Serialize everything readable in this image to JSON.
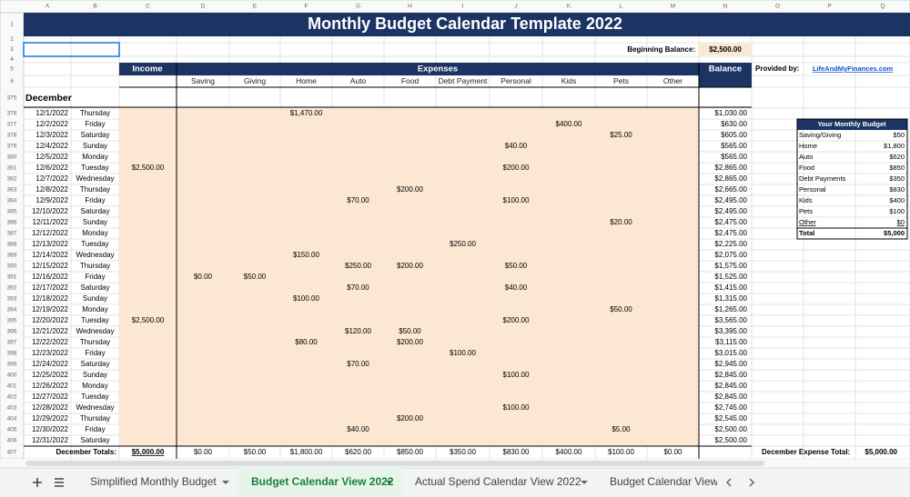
{
  "column_letters": [
    "A",
    "B",
    "C",
    "D",
    "E",
    "F",
    "G",
    "H",
    "I",
    "J",
    "K",
    "L",
    "M",
    "N",
    "O",
    "P",
    "Q"
  ],
  "row_numbers": [
    1,
    2,
    3,
    4,
    5,
    6,
    375,
    376,
    377,
    378,
    379,
    380,
    381,
    382,
    383,
    384,
    385,
    386,
    387,
    388,
    389,
    390,
    391,
    392,
    393,
    394,
    395,
    396,
    397,
    398,
    399,
    400,
    401,
    402,
    403,
    404,
    405,
    406,
    407
  ],
  "title": "Monthly Budget Calendar Template 2022",
  "beginning_balance": {
    "label": "Beginning Balance:",
    "value": "$2,500.00"
  },
  "provided_by": {
    "label": "Provided by:",
    "link": "LifeAndMyFinances.com"
  },
  "headers": {
    "income": "Income",
    "expenses": "Expenses",
    "balance": "Balance"
  },
  "expense_categories": [
    "Saving",
    "Giving",
    "Home",
    "Auto",
    "Food",
    "Debt Payment",
    "Personal",
    "Kids",
    "Pets",
    "Other"
  ],
  "month": "December",
  "days": [
    [
      "12/1/2022",
      "Thursday",
      null,
      null,
      null,
      "$1,470.00",
      null,
      null,
      null,
      null,
      null,
      null,
      null,
      "$1,030.00"
    ],
    [
      "12/2/2022",
      "Friday",
      null,
      null,
      null,
      null,
      null,
      null,
      null,
      null,
      "$400.00",
      null,
      null,
      "$630.00"
    ],
    [
      "12/3/2022",
      "Saturday",
      null,
      null,
      null,
      null,
      null,
      null,
      null,
      null,
      null,
      "$25.00",
      null,
      "$605.00"
    ],
    [
      "12/4/2022",
      "Sunday",
      null,
      null,
      null,
      null,
      null,
      null,
      null,
      "$40.00",
      null,
      null,
      null,
      "$565.00"
    ],
    [
      "12/5/2022",
      "Monday",
      null,
      null,
      null,
      null,
      null,
      null,
      null,
      null,
      null,
      null,
      null,
      "$565.00"
    ],
    [
      "12/6/2022",
      "Tuesday",
      "$2,500.00",
      null,
      null,
      null,
      null,
      null,
      null,
      "$200.00",
      null,
      null,
      null,
      "$2,865.00"
    ],
    [
      "12/7/2022",
      "Wednesday",
      null,
      null,
      null,
      null,
      null,
      null,
      null,
      null,
      null,
      null,
      null,
      "$2,865.00"
    ],
    [
      "12/8/2022",
      "Thursday",
      null,
      null,
      null,
      null,
      null,
      "$200.00",
      null,
      null,
      null,
      null,
      null,
      "$2,665.00"
    ],
    [
      "12/9/2022",
      "Friday",
      null,
      null,
      null,
      null,
      "$70.00",
      null,
      null,
      "$100.00",
      null,
      null,
      null,
      "$2,495.00"
    ],
    [
      "12/10/2022",
      "Saturday",
      null,
      null,
      null,
      null,
      null,
      null,
      null,
      null,
      null,
      null,
      null,
      "$2,495.00"
    ],
    [
      "12/11/2022",
      "Sunday",
      null,
      null,
      null,
      null,
      null,
      null,
      null,
      null,
      null,
      "$20.00",
      null,
      "$2,475.00"
    ],
    [
      "12/12/2022",
      "Monday",
      null,
      null,
      null,
      null,
      null,
      null,
      null,
      null,
      null,
      null,
      null,
      "$2,475.00"
    ],
    [
      "12/13/2022",
      "Tuesday",
      null,
      null,
      null,
      null,
      null,
      null,
      "$250.00",
      null,
      null,
      null,
      null,
      "$2,225.00"
    ],
    [
      "12/14/2022",
      "Wednesday",
      null,
      null,
      null,
      "$150.00",
      null,
      null,
      null,
      null,
      null,
      null,
      null,
      "$2,075.00"
    ],
    [
      "12/15/2022",
      "Thursday",
      null,
      null,
      null,
      null,
      "$250.00",
      "$200.00",
      null,
      "$50.00",
      null,
      null,
      null,
      "$1,575.00"
    ],
    [
      "12/16/2022",
      "Friday",
      null,
      "$0.00",
      "$50.00",
      null,
      null,
      null,
      null,
      null,
      null,
      null,
      null,
      "$1,525.00"
    ],
    [
      "12/17/2022",
      "Saturday",
      null,
      null,
      null,
      null,
      "$70.00",
      null,
      null,
      "$40.00",
      null,
      null,
      null,
      "$1,415.00"
    ],
    [
      "12/18/2022",
      "Sunday",
      null,
      null,
      null,
      "$100.00",
      null,
      null,
      null,
      null,
      null,
      null,
      null,
      "$1,315.00"
    ],
    [
      "12/19/2022",
      "Monday",
      null,
      null,
      null,
      null,
      null,
      null,
      null,
      null,
      null,
      "$50.00",
      null,
      "$1,265.00"
    ],
    [
      "12/20/2022",
      "Tuesday",
      "$2,500.00",
      null,
      null,
      null,
      null,
      null,
      null,
      "$200.00",
      null,
      null,
      null,
      "$3,565.00"
    ],
    [
      "12/21/2022",
      "Wednesday",
      null,
      null,
      null,
      null,
      "$120.00",
      "$50.00",
      null,
      null,
      null,
      null,
      null,
      "$3,395.00"
    ],
    [
      "12/22/2022",
      "Thursday",
      null,
      null,
      null,
      "$80.00",
      null,
      "$200.00",
      null,
      null,
      null,
      null,
      null,
      "$3,115.00"
    ],
    [
      "12/23/2022",
      "Friday",
      null,
      null,
      null,
      null,
      null,
      null,
      "$100.00",
      null,
      null,
      null,
      null,
      "$3,015.00"
    ],
    [
      "12/24/2022",
      "Saturday",
      null,
      null,
      null,
      null,
      "$70.00",
      null,
      null,
      null,
      null,
      null,
      null,
      "$2,945.00"
    ],
    [
      "12/25/2022",
      "Sunday",
      null,
      null,
      null,
      null,
      null,
      null,
      null,
      "$100.00",
      null,
      null,
      null,
      "$2,845.00"
    ],
    [
      "12/26/2022",
      "Monday",
      null,
      null,
      null,
      null,
      null,
      null,
      null,
      null,
      null,
      null,
      null,
      "$2,845.00"
    ],
    [
      "12/27/2022",
      "Tuesday",
      null,
      null,
      null,
      null,
      null,
      null,
      null,
      null,
      null,
      null,
      null,
      "$2,845.00"
    ],
    [
      "12/28/2022",
      "Wednesday",
      null,
      null,
      null,
      null,
      null,
      null,
      null,
      "$100.00",
      null,
      null,
      null,
      "$2,745.00"
    ],
    [
      "12/29/2022",
      "Thursday",
      null,
      null,
      null,
      null,
      null,
      "$200.00",
      null,
      null,
      null,
      null,
      null,
      "$2,545.00"
    ],
    [
      "12/30/2022",
      "Friday",
      null,
      null,
      null,
      null,
      "$40.00",
      null,
      null,
      null,
      null,
      "$5.00",
      null,
      "$2,500.00"
    ],
    [
      "12/31/2022",
      "Saturday",
      null,
      null,
      null,
      null,
      null,
      null,
      null,
      null,
      null,
      null,
      null,
      "$2,500.00"
    ]
  ],
  "totals": {
    "label": "December Totals:",
    "cells": [
      "$5,000.00",
      "$0.00",
      "$50.00",
      "$1,800.00",
      "$620.00",
      "$850.00",
      "$350.00",
      "$830.00",
      "$400.00",
      "$100.00",
      "$0.00"
    ],
    "expense_total_label": "December Expense Total:",
    "expense_total": "$5,000.00"
  },
  "budget_summary": {
    "title": "Your Monthly Budget",
    "rows": [
      [
        "Saving/Giving",
        "$50"
      ],
      [
        "Home",
        "$1,800"
      ],
      [
        "Auto",
        "$620"
      ],
      [
        "Food",
        "$850"
      ],
      [
        "Debt Payments",
        "$350"
      ],
      [
        "Personal",
        "$830"
      ],
      [
        "Kids",
        "$400"
      ],
      [
        "Pets",
        "$100"
      ],
      [
        "Other",
        "$0"
      ]
    ],
    "total": [
      "Total",
      "$5,000"
    ]
  },
  "sheet_tabs": [
    "Simplified Monthly Budget",
    "Budget Calendar View 2022",
    "Actual Spend Calendar View 2022",
    "Budget Calendar View"
  ]
}
